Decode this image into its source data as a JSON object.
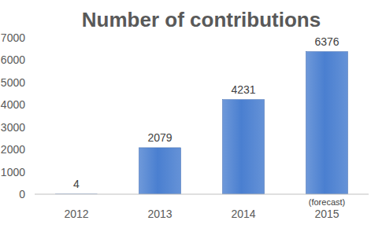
{
  "chart_data": {
    "type": "bar",
    "title": "Number of contributions",
    "categories": [
      "2012",
      "2013",
      "2014",
      "2015"
    ],
    "values": [
      4,
      2079,
      4231,
      6376
    ],
    "color": "#4a7fd0",
    "ylim": [
      0,
      7000
    ],
    "yticks": [
      0,
      1000,
      2000,
      3000,
      4000,
      5000,
      6000,
      7000
    ],
    "grid": false,
    "data_labels": true,
    "annotations": [
      {
        "text": "(forecast)",
        "category": "2015"
      }
    ]
  }
}
